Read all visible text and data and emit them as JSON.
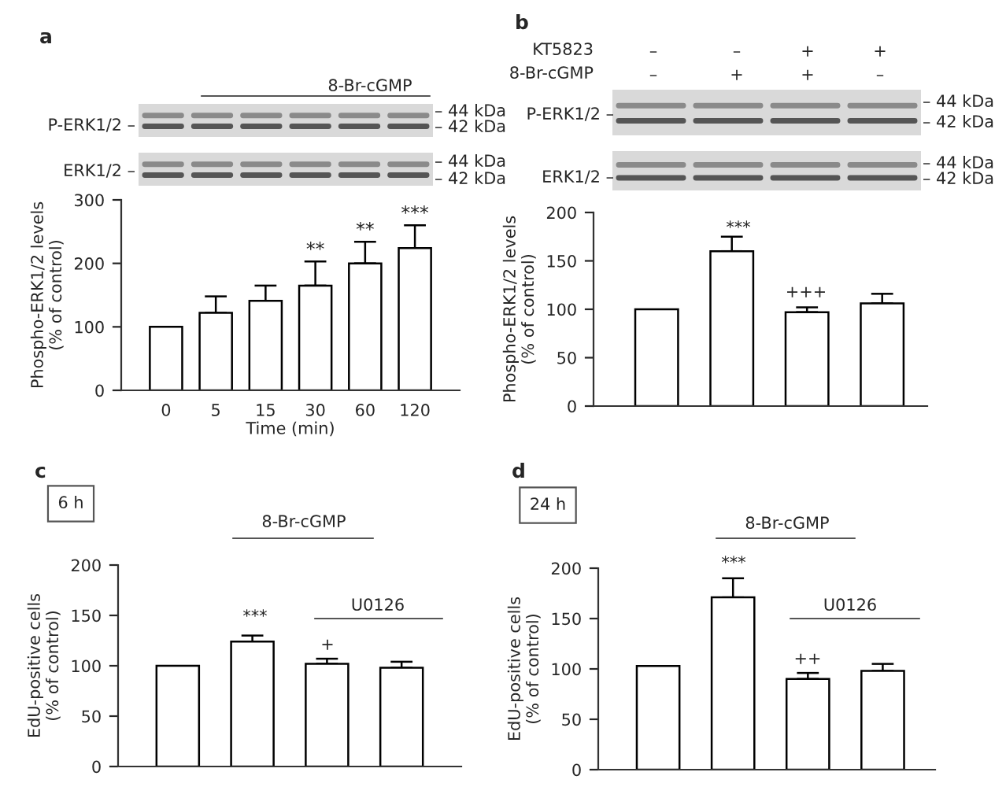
{
  "chart_data": [
    {
      "type": "bar",
      "categories": [
        "0",
        "5",
        "15",
        "30",
        "60",
        "120"
      ],
      "xlabel": "Time (min)",
      "ylabel": "Phospho-ERK1/2 levels\n(% of control)",
      "series": [
        {
          "color": "#ffffff",
          "values": [
            100,
            122,
            141,
            165,
            200,
            224
          ],
          "errors": [
            null,
            [
              122,
              148
            ],
            [
              141,
              165
            ],
            [
              165,
              203
            ],
            [
              200,
              234
            ],
            [
              224,
              260
            ]
          ]
        }
      ],
      "ylim": [
        0,
        300
      ],
      "yticks": [
        0,
        100,
        200,
        300
      ],
      "grid": false,
      "legend": false,
      "annotations": [
        "a",
        "8-Br-cGMP",
        "P-ERK1/2 –",
        "ERK1/2 –",
        "– 44 kDa",
        "– 42 kDa",
        "– 44 kDa",
        "– 42 kDa",
        {
          "text": "**",
          "x": "30",
          "y": 203
        },
        {
          "text": "**",
          "x": "60",
          "y": 234
        },
        {
          "text": "***",
          "x": "120",
          "y": 260
        }
      ]
    },
    {
      "type": "bar",
      "categories": [
        null,
        null,
        null,
        null
      ],
      "ylabel": "Phospho-ERK1/2 levels\n(% of control)",
      "series": [
        {
          "color": "#ffffff",
          "values": [
            100,
            160,
            97,
            106
          ],
          "errors": [
            null,
            [
              160,
              175
            ],
            [
              97,
              102
            ],
            [
              106,
              116
            ]
          ]
        }
      ],
      "ylim": [
        0,
        200
      ],
      "yticks": [
        0,
        50,
        100,
        150,
        200
      ],
      "grid": false,
      "legend": false,
      "tick_labels": "y",
      "annotations": [
        "b",
        "KT5823",
        "8-Br-cGMP",
        "–",
        "–",
        "+",
        "+",
        "–",
        "+",
        "+",
        "–",
        "P-ERK1/2 –",
        "ERK1/2 –",
        "– 44 kDa",
        "– 42 kDa",
        "– 44 kDa",
        "– 42 kDa",
        "***",
        "+++"
      ]
    },
    {
      "type": "bar",
      "categories": [
        null,
        null,
        null,
        null
      ],
      "ylabel": "EdU-positive cells\n(% of control)",
      "series": [
        {
          "color": "#ffffff",
          "values": [
            100,
            124,
            102,
            98
          ],
          "errors": [
            null,
            [
              124,
              130
            ],
            [
              102,
              107
            ],
            [
              98,
              104
            ]
          ]
        }
      ],
      "ylim": [
        0,
        200
      ],
      "yticks": [
        0,
        50,
        100,
        150,
        200
      ],
      "grid": false,
      "legend": false,
      "tick_labels": "y",
      "annotations": [
        "c",
        "6 h",
        "8-Br-cGMP",
        "U0126",
        "***",
        "+"
      ]
    },
    {
      "type": "bar",
      "categories": [
        null,
        null,
        null,
        null
      ],
      "ylabel": "EdU-positive cells\n(% of control)",
      "series": [
        {
          "color": "#ffffff",
          "values": [
            103,
            171,
            90,
            98
          ],
          "errors": [
            null,
            [
              171,
              190
            ],
            [
              90,
              96
            ],
            [
              98,
              105
            ]
          ]
        }
      ],
      "ylim": [
        0,
        200
      ],
      "yticks": [
        0,
        50,
        100,
        150,
        200
      ],
      "grid": false,
      "legend": false,
      "tick_labels": "y",
      "annotations": [
        "d",
        "24 h",
        "8-Br-cGMP",
        "U0126",
        "***",
        "++"
      ]
    }
  ]
}
